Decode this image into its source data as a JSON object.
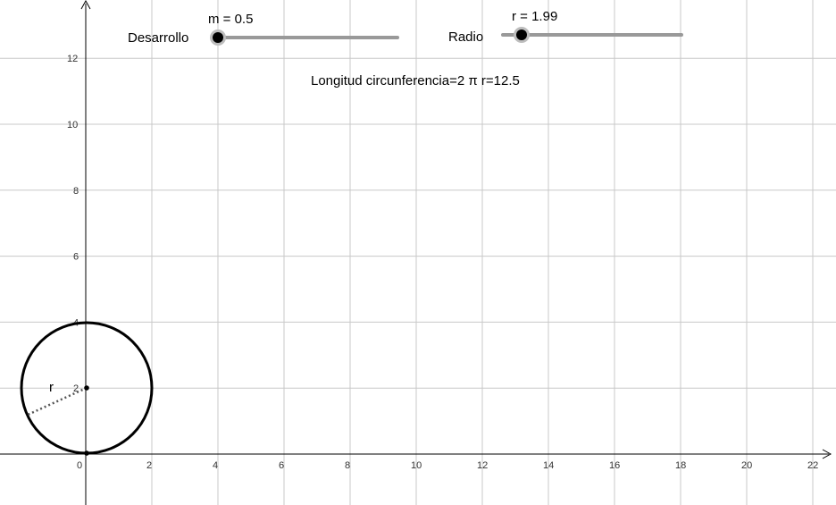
{
  "axes": {
    "x_ticks": [
      0,
      2,
      4,
      6,
      8,
      10,
      12,
      14,
      16,
      18,
      20,
      22
    ],
    "y_ticks": [
      2,
      4,
      6,
      8,
      10,
      12
    ],
    "grid": true
  },
  "sliders": {
    "desarrollo": {
      "label": "Desarrollo",
      "value_text": "m = 0.5",
      "value": 0.5
    },
    "radio": {
      "label": "Radio",
      "value_text": "r = 1.99",
      "value": 1.99
    }
  },
  "formula_text": "Longitud circunferencia=2 π r=12.5",
  "circle": {
    "center": [
      0.2,
      1.99
    ],
    "radius": 1.99,
    "radius_label": "r"
  },
  "colors": {
    "grid": "#c8c8c8",
    "axis": "#000000",
    "slider_track": "#999999",
    "knob": "#000000"
  }
}
